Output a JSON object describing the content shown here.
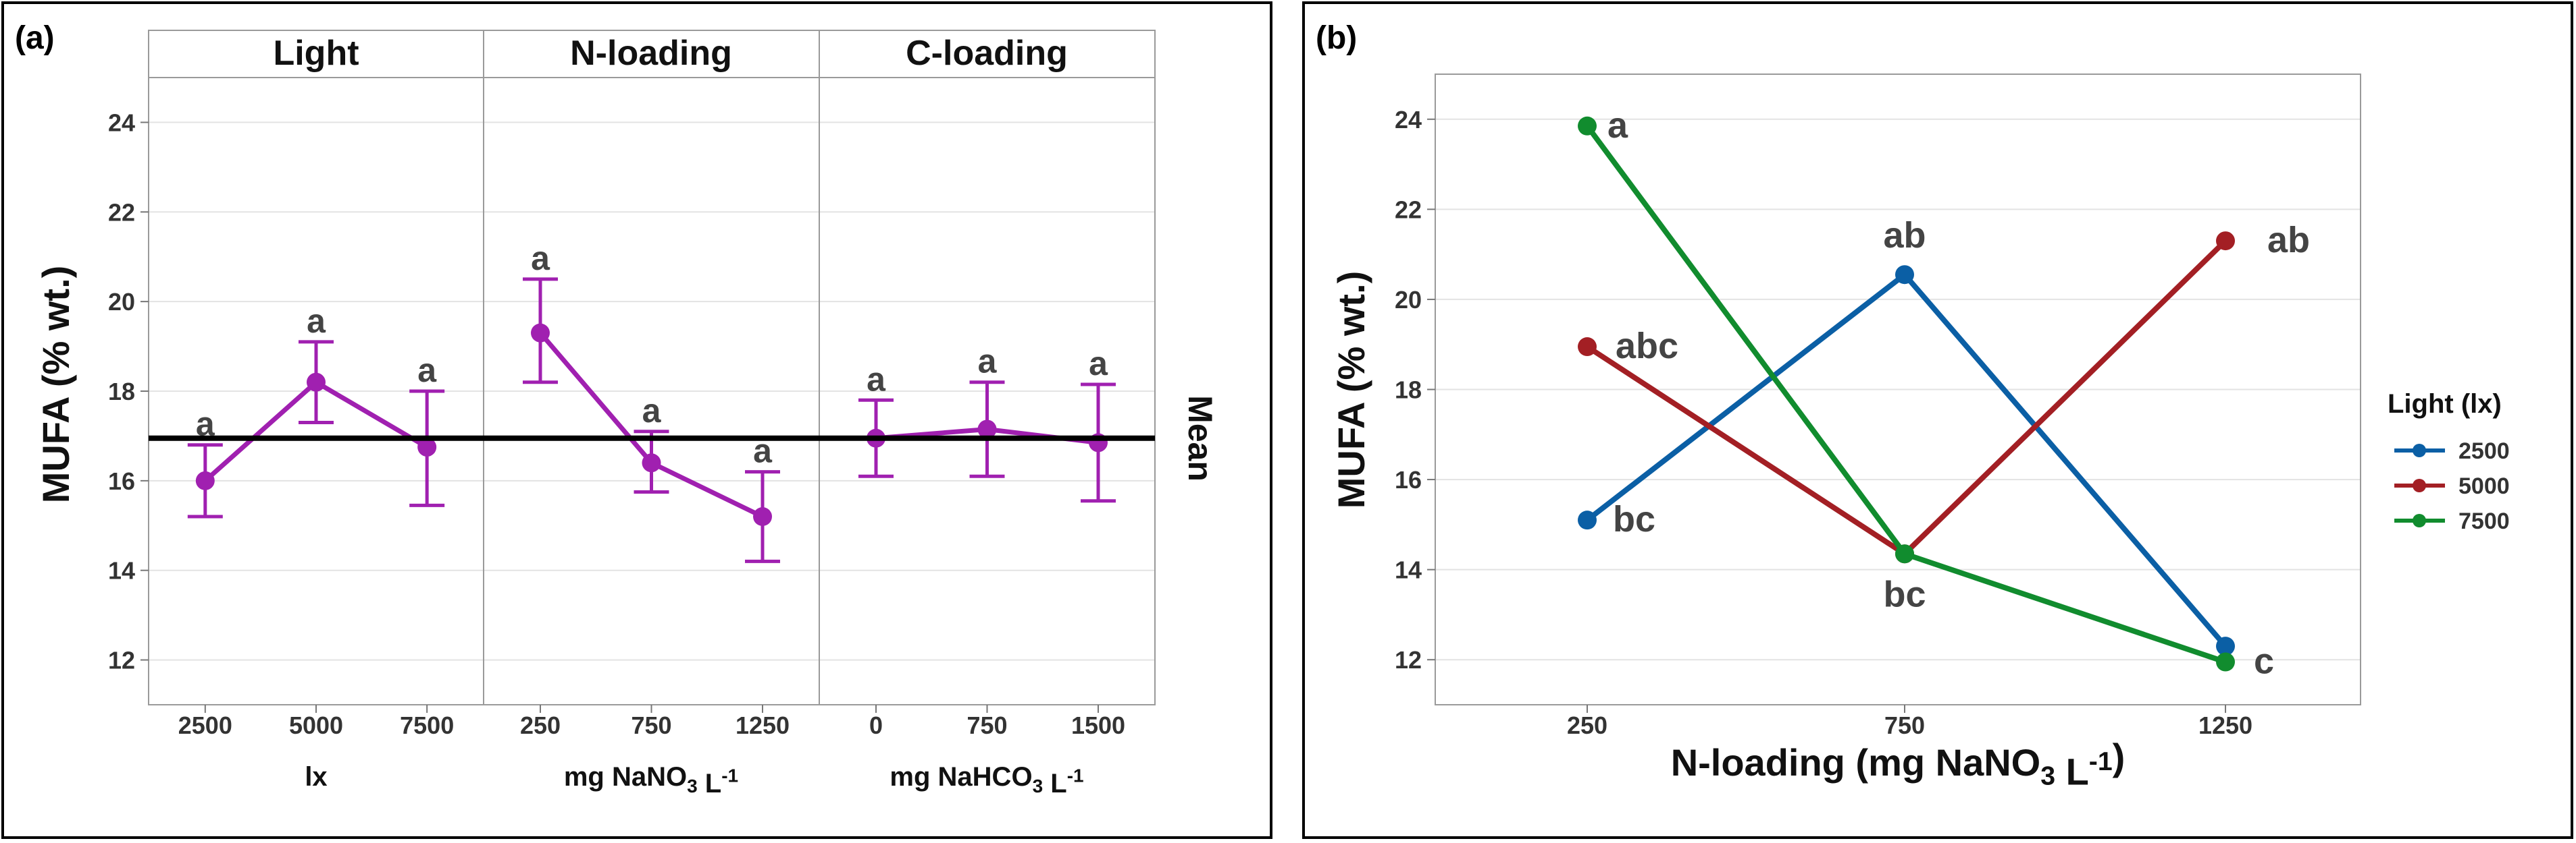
{
  "panel_a": {
    "label": "(a)",
    "mean_label": "Mean",
    "ylabel": "MUFA (% wt.)",
    "strips": [
      "Light",
      "N-loading",
      "C-loading"
    ],
    "xlabels": [
      "lx",
      "mg NaNO3 L-1",
      "mg NaHCO3 L-1"
    ]
  },
  "panel_b": {
    "label": "(b)",
    "ylabel": "MUFA  (% wt.)",
    "xlabel": "N-loading (mg NaNO3 L-1)",
    "legend_title": "Light (lx)"
  },
  "colors": {
    "main_effects": "#A020B0",
    "mean_line": "#000000",
    "s2500": "#0B5FA5",
    "s5000": "#A31F24",
    "s7500": "#118C2E"
  },
  "chart_data": [
    {
      "type": "line",
      "subtype": "main-effects-with-error-bars",
      "ylabel": "MUFA (% wt.)",
      "ylim": [
        11,
        25
      ],
      "yticks": [
        12,
        14,
        16,
        18,
        20,
        22,
        24
      ],
      "mean": 16.95,
      "grid": true,
      "facets": [
        {
          "strip": "Light",
          "xlabel": "lx",
          "categories": [
            "2500",
            "5000",
            "7500"
          ],
          "values": [
            16.0,
            18.2,
            16.75
          ],
          "lower": [
            15.2,
            17.3,
            15.45
          ],
          "upper": [
            16.8,
            19.1,
            18.0
          ],
          "letters": [
            "a",
            "a",
            "a"
          ]
        },
        {
          "strip": "N-loading",
          "xlabel": "mg NaNO3 L-1",
          "categories": [
            "250",
            "750",
            "1250"
          ],
          "values": [
            19.3,
            16.4,
            15.2
          ],
          "lower": [
            18.2,
            15.75,
            14.2
          ],
          "upper": [
            20.5,
            17.1,
            16.2
          ],
          "letters": [
            "a",
            "a",
            "a"
          ]
        },
        {
          "strip": "C-loading",
          "xlabel": "mg NaHCO3 L-1",
          "categories": [
            "0",
            "750",
            "1500"
          ],
          "values": [
            16.95,
            17.15,
            16.85
          ],
          "lower": [
            16.1,
            16.1,
            15.55
          ],
          "upper": [
            17.8,
            18.2,
            18.15
          ],
          "letters": [
            "a",
            "a",
            "a"
          ]
        }
      ]
    },
    {
      "type": "line",
      "subtype": "interaction-plot",
      "xlabel": "N-loading (mg NaNO3 L-1)",
      "ylabel": "MUFA  (% wt.)",
      "categories": [
        "250",
        "750",
        "1250"
      ],
      "ylim": [
        11,
        25
      ],
      "yticks": [
        12,
        14,
        16,
        18,
        20,
        22,
        24
      ],
      "grid": true,
      "legend": "right",
      "legend_title": "Light (lx)",
      "series": [
        {
          "name": "2500",
          "color": "#0B5FA5",
          "values": [
            15.1,
            20.55,
            12.3
          ]
        },
        {
          "name": "5000",
          "color": "#A31F24",
          "values": [
            18.95,
            14.35,
            21.3
          ]
        },
        {
          "name": "7500",
          "color": "#118C2E",
          "values": [
            23.85,
            14.35,
            11.95
          ]
        }
      ],
      "annotations": [
        {
          "text": "a",
          "x": "250",
          "y": 23.85
        },
        {
          "text": "abc",
          "x": "250",
          "y": 18.95
        },
        {
          "text": "bc",
          "x": "250",
          "y": 15.1
        },
        {
          "text": "ab",
          "x": "750",
          "y": 20.55
        },
        {
          "text": "bc",
          "x": "750",
          "y": 14.35
        },
        {
          "text": "ab",
          "x": "1250",
          "y": 21.3
        },
        {
          "text": "c",
          "x": "1250",
          "y": 11.95
        }
      ]
    }
  ]
}
